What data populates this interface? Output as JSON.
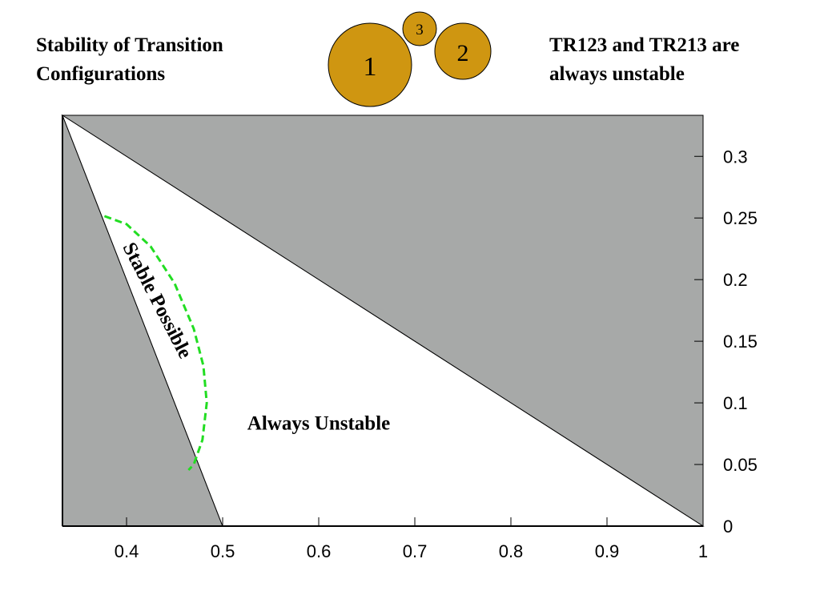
{
  "titles": {
    "left_line1": "Stability of Transition",
    "left_line2": "Configurations",
    "right_line1": "TR123 and TR213 are",
    "right_line2": "always unstable"
  },
  "disks": {
    "fill": "#cf9611",
    "items": [
      {
        "label": "1",
        "radius_rel": 1.0
      },
      {
        "label": "2",
        "radius_rel": 0.66
      },
      {
        "label": "3",
        "radius_rel": 0.4
      }
    ]
  },
  "chart_data": {
    "type": "area",
    "x_ticks": [
      0.4,
      0.5,
      0.6,
      0.7,
      0.8,
      0.9,
      1
    ],
    "x_tick_labels": [
      "0.4",
      "0.5",
      "0.6",
      "0.7",
      "0.8",
      "0.9",
      "1"
    ],
    "y_ticks": [
      0,
      0.05,
      0.1,
      0.15,
      0.2,
      0.25,
      0.3
    ],
    "y_tick_labels": [
      "0",
      "0.05",
      "0.1",
      "0.15",
      "0.2",
      "0.25",
      "0.3"
    ],
    "xlim": [
      0.3333,
      1
    ],
    "ylim": [
      0,
      0.3333
    ],
    "y_axis_side": "right",
    "colors": {
      "region": "#a7a9a8",
      "boundary": "#000000",
      "stable_curve": "#22dd22"
    },
    "regions": [
      {
        "name": "upper",
        "shaded": true,
        "polygon": [
          [
            0.3333,
            0.3333
          ],
          [
            1,
            0.3333
          ],
          [
            1,
            0
          ]
        ]
      },
      {
        "name": "left",
        "shaded": true,
        "polygon": [
          [
            0.3333,
            0.3333
          ],
          [
            0.5,
            0
          ],
          [
            0.3333,
            0
          ]
        ]
      },
      {
        "name": "middle",
        "shaded": false,
        "polygon": [
          [
            0.3333,
            0.3333
          ],
          [
            1,
            0
          ],
          [
            0.5,
            0
          ]
        ]
      }
    ],
    "stable_curve": {
      "style": "dashed",
      "points": [
        [
          0.377,
          0.2515
        ],
        [
          0.4,
          0.245
        ],
        [
          0.425,
          0.227
        ],
        [
          0.45,
          0.197
        ],
        [
          0.47,
          0.16
        ],
        [
          0.48,
          0.13
        ],
        [
          0.4835,
          0.1
        ],
        [
          0.479,
          0.07
        ],
        [
          0.47,
          0.05
        ],
        [
          0.4645,
          0.0455
        ]
      ]
    },
    "annotations": [
      {
        "text": "Stable Possible",
        "x": 0.4305,
        "y": 0.1825,
        "rotation_deg": 62.6
      },
      {
        "text": "Always Unstable",
        "x": 0.6,
        "y": 0.082,
        "rotation_deg": 0
      }
    ]
  }
}
